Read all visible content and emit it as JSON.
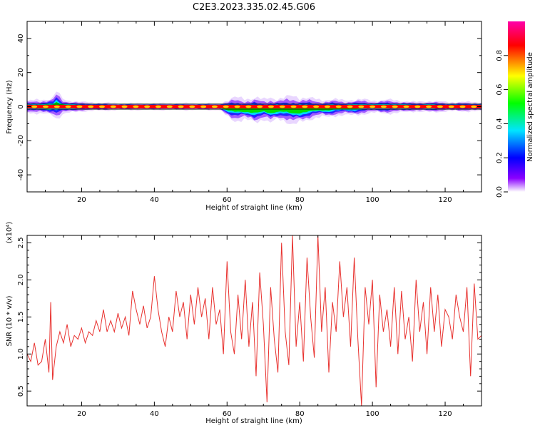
{
  "title": "C2E3.2023.335.02.45.G06",
  "chart_data": [
    {
      "type": "heatmap",
      "xlabel": "Height of straight line (km)",
      "ylabel": "Frequency (Hz)",
      "xlim": [
        5,
        130
      ],
      "ylim": [
        -50,
        50
      ],
      "xticks": [
        20,
        40,
        60,
        80,
        100,
        120
      ],
      "yticks": [
        -40,
        -20,
        0,
        20,
        40
      ],
      "colorbar": {
        "label": "Normalized spectral amplitude",
        "range": [
          0.0,
          1.0
        ],
        "ticks": [
          "0.0",
          "0.2",
          "0.4",
          "0.6",
          "0.8"
        ],
        "tick_values": [
          0.0,
          0.2,
          0.4,
          0.6,
          0.8
        ],
        "colors": [
          "#ffffff",
          "#8a00ff",
          "#0000ff",
          "#00e5ff",
          "#00ff00",
          "#ffff00",
          "#ff0000",
          "#ff00aa"
        ]
      },
      "signal_center_hz": 0,
      "band": {
        "x": [
          5,
          12,
          13,
          15,
          20,
          30,
          40,
          50,
          58,
          60,
          62,
          65,
          68,
          70,
          72,
          74,
          76,
          78,
          80,
          82,
          84,
          86,
          88,
          90,
          92,
          95,
          98,
          100,
          104,
          108,
          112,
          116,
          120,
          125,
          130
        ],
        "spread_hz": [
          2.5,
          3.5,
          6.0,
          3.0,
          2.0,
          1.5,
          1.5,
          1.5,
          1.5,
          3.5,
          5.0,
          4.5,
          5.5,
          4.0,
          5.5,
          4.5,
          5.0,
          6.0,
          5.5,
          5.0,
          4.0,
          3.5,
          4.0,
          3.5,
          3.0,
          3.5,
          3.0,
          2.5,
          3.0,
          2.5,
          2.0,
          2.5,
          2.0,
          2.0,
          2.0
        ],
        "offset_hz": [
          0,
          0,
          1.0,
          0,
          0,
          0,
          0,
          0,
          0,
          -1.0,
          -1.5,
          -1.5,
          -2.0,
          -1.5,
          -2.0,
          -1.5,
          -1.5,
          -2.0,
          -2.0,
          -1.5,
          -1.0,
          -1.0,
          -1.0,
          -0.5,
          -0.5,
          -0.5,
          0,
          0,
          0,
          0,
          0,
          0,
          0,
          0,
          0
        ]
      }
    },
    {
      "type": "line",
      "xlabel": "Height of straight line (km)",
      "ylabel": "SNR (10 * v/v)",
      "yscale_label": "(x10⁴)",
      "xlim": [
        5,
        130
      ],
      "ylim": [
        0.3,
        2.6
      ],
      "xticks": [
        20,
        40,
        60,
        80,
        100,
        120
      ],
      "yticks": [
        0.5,
        1.0,
        1.5,
        2.0,
        2.5
      ],
      "color": "#e8312e",
      "x": [
        5,
        6,
        7,
        8,
        9,
        10,
        11,
        11.5,
        12,
        13,
        14,
        15,
        16,
        17,
        18,
        19,
        20,
        21,
        22,
        23,
        24,
        25,
        26,
        27,
        28,
        29,
        30,
        31,
        32,
        33,
        34,
        35,
        36,
        37,
        38,
        39,
        40,
        41,
        42,
        43,
        44,
        45,
        46,
        47,
        48,
        49,
        50,
        51,
        52,
        53,
        54,
        55,
        56,
        57,
        58,
        59,
        60,
        61,
        62,
        63,
        64,
        65,
        66,
        67,
        68,
        69,
        70,
        71,
        72,
        73,
        74,
        75,
        76,
        77,
        78,
        79,
        80,
        81,
        82,
        83,
        84,
        85,
        86,
        87,
        88,
        89,
        90,
        91,
        92,
        93,
        94,
        95,
        96,
        97,
        98,
        99,
        100,
        101,
        102,
        103,
        104,
        105,
        106,
        107,
        108,
        109,
        110,
        111,
        112,
        113,
        114,
        115,
        116,
        117,
        118,
        119,
        120,
        121,
        122,
        123,
        124,
        125,
        126,
        127,
        128,
        129,
        130
      ],
      "y": [
        1.0,
        0.9,
        1.15,
        0.85,
        0.9,
        1.2,
        0.75,
        1.7,
        0.65,
        1.1,
        1.3,
        1.15,
        1.4,
        1.1,
        1.25,
        1.2,
        1.35,
        1.15,
        1.3,
        1.25,
        1.45,
        1.3,
        1.6,
        1.3,
        1.45,
        1.3,
        1.55,
        1.35,
        1.5,
        1.25,
        1.85,
        1.6,
        1.4,
        1.65,
        1.35,
        1.5,
        2.05,
        1.6,
        1.3,
        1.1,
        1.5,
        1.3,
        1.85,
        1.5,
        1.7,
        1.2,
        1.8,
        1.4,
        1.9,
        1.5,
        1.75,
        1.2,
        1.9,
        1.4,
        1.6,
        1.0,
        2.25,
        1.3,
        1.0,
        1.8,
        1.2,
        2.0,
        1.1,
        1.7,
        0.7,
        2.1,
        1.4,
        0.35,
        1.9,
        1.2,
        0.75,
        2.5,
        1.3,
        0.85,
        2.6,
        1.1,
        1.7,
        0.9,
        2.3,
        1.5,
        0.95,
        2.6,
        1.3,
        1.9,
        0.75,
        1.7,
        1.3,
        2.25,
        1.5,
        1.9,
        1.1,
        2.3,
        1.2,
        0.3,
        1.9,
        1.4,
        2.0,
        0.55,
        1.8,
        1.3,
        1.6,
        1.1,
        1.9,
        1.0,
        1.85,
        1.2,
        1.5,
        0.9,
        2.0,
        1.3,
        1.7,
        1.0,
        1.9,
        1.3,
        1.8,
        1.1,
        1.6,
        1.5,
        1.2,
        1.8,
        1.5,
        1.3,
        1.9,
        0.7,
        1.95,
        1.2,
        1.25
      ]
    }
  ]
}
